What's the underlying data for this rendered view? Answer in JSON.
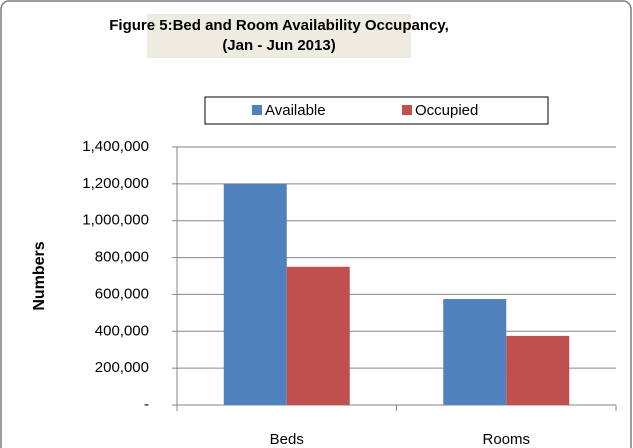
{
  "chart_data": {
    "type": "bar",
    "title": [
      "Figure 5:Bed and Room Availability Occupancy,",
      "(Jan - Jun 2013)"
    ],
    "y_label": "Numbers",
    "categories": [
      "Beds",
      "Rooms"
    ],
    "series": [
      {
        "name": "Available",
        "color": "#4f81bd",
        "values": [
          1200000,
          575000
        ]
      },
      {
        "name": "Occupied",
        "color": "#c0504d",
        "values": [
          750000,
          375000
        ]
      }
    ],
    "ylim": [
      0,
      1400000
    ],
    "yticks": [
      {
        "value": 0,
        "label": "-"
      },
      {
        "value": 200000,
        "label": "200,000"
      },
      {
        "value": 400000,
        "label": "400,000"
      },
      {
        "value": 600000,
        "label": "600,000"
      },
      {
        "value": 800000,
        "label": "800,000"
      },
      {
        "value": 1000000,
        "label": "1,000,000"
      },
      {
        "value": 1200000,
        "label": "1,200,000"
      },
      {
        "value": 1400000,
        "label": "1,400,000"
      }
    ],
    "grid": true,
    "legend": "top"
  }
}
